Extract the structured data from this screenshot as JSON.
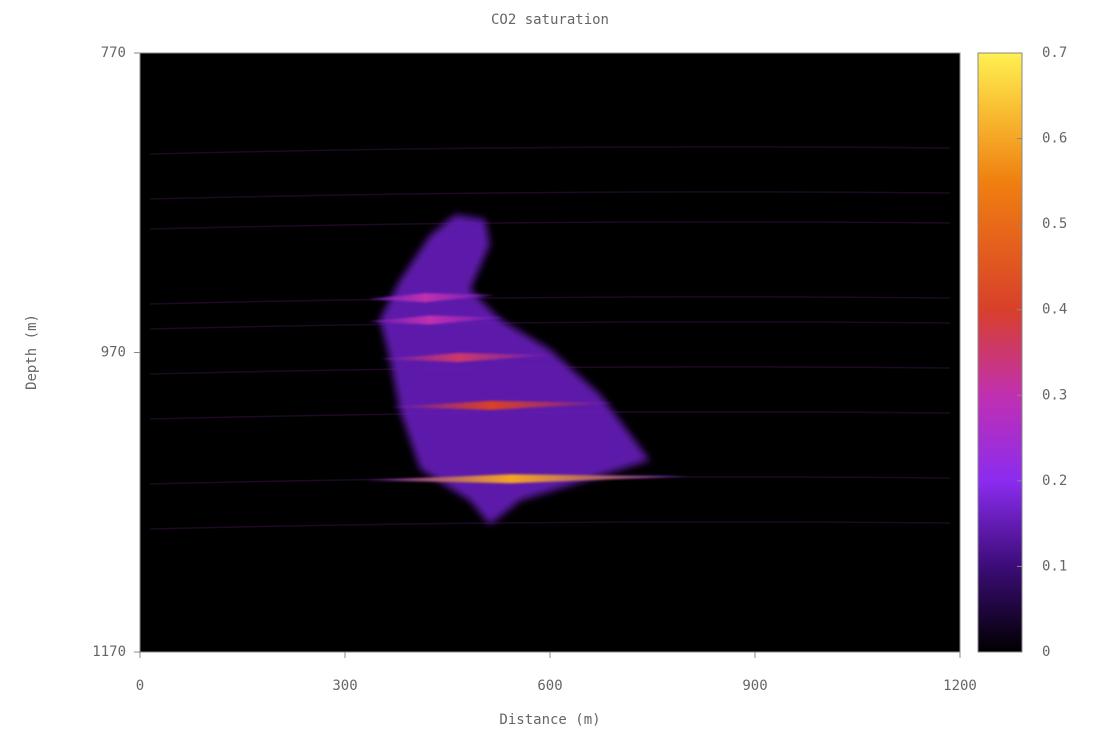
{
  "chart_data": {
    "type": "heatmap",
    "title": "CO2 saturation",
    "xlabel": "Distance (m)",
    "ylabel": "Depth (m)",
    "xlim": [
      0,
      1200
    ],
    "xticks": [
      0,
      300,
      600,
      900,
      1200
    ],
    "ylim": [
      770,
      1170
    ],
    "yticks": [
      770,
      970,
      1170
    ],
    "y_inverted": true,
    "clim": [
      0,
      0.7
    ],
    "cticks": [
      0,
      0.1,
      0.2,
      0.3,
      0.4,
      0.5,
      0.6,
      0.7
    ],
    "colormap": [
      {
        "value": 0,
        "color": "#000000"
      },
      {
        "value": 0.1,
        "color": "#3c0c78"
      },
      {
        "value": 0.2,
        "color": "#8b2cf0"
      },
      {
        "value": 0.3,
        "color": "#c030b0"
      },
      {
        "value": 0.4,
        "color": "#d8402a"
      },
      {
        "value": 0.55,
        "color": "#f08010"
      },
      {
        "value": 0.7,
        "color": "#fff050"
      }
    ],
    "background_value": 0,
    "plume": {
      "value": 0.15,
      "x": [
        461,
        505,
        512,
        483,
        527,
        600,
        673,
        746,
        556,
        512,
        483,
        410,
        380,
        366,
        351,
        380,
        424
      ],
      "depth": [
        878,
        881,
        898,
        928,
        948,
        968,
        998,
        1042,
        1069,
        1085,
        1069,
        1048,
        1008,
        975,
        948,
        922,
        892
      ]
    },
    "lenses": [
      {
        "depth": 933,
        "x": [
          334,
          520
        ],
        "value": 0.3
      },
      {
        "depth": 948,
        "x": [
          334,
          534
        ],
        "value": 0.3
      },
      {
        "depth": 973,
        "x": [
          351,
          607
        ],
        "value": 0.35
      },
      {
        "depth": 1005,
        "x": [
          366,
          695
        ],
        "value": 0.4
      },
      {
        "depth": 1054,
        "x": [
          329,
          805
        ],
        "value": 0.6
      }
    ]
  }
}
